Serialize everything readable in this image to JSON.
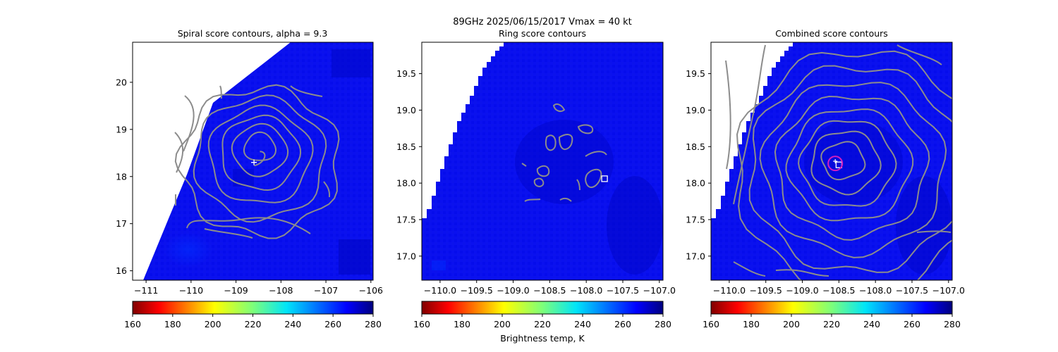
{
  "figure": {
    "suptitle_line1": "89GHz  2025/06/15/2017    Vmax = 40 kt",
    "colorbar_label": "Brightness temp, K"
  },
  "colors": {
    "contour": "#8c8c8c",
    "center_marker": "#ffffff",
    "combined_circle": "#d21fbf",
    "field_base": "#0a10f0"
  },
  "chart_data": [
    {
      "type": "heatmap",
      "title": "Spiral score contours, alpha =  9.3",
      "xlim": [
        -111.3,
        -105.95
      ],
      "ylim": [
        15.8,
        20.85
      ],
      "xticks": [
        -111,
        -110,
        -109,
        -108,
        -107,
        -106
      ],
      "xtick_labels": [
        "−111",
        "−110",
        "−109",
        "−108",
        "−107",
        "−106"
      ],
      "yticks": [
        16,
        17,
        18,
        19,
        20
      ],
      "ytick_labels": [
        "16",
        "17",
        "18",
        "19",
        "20"
      ],
      "center_marker": {
        "type": "plus",
        "x": -108.6,
        "y": 18.3
      },
      "contour_center": {
        "x": -108.5,
        "y": 18.5
      },
      "colorbar": {
        "min": 160,
        "max": 280,
        "ticks": [
          160,
          180,
          200,
          220,
          240,
          260,
          280
        ],
        "colormap": "jet_r"
      }
    },
    {
      "type": "heatmap",
      "title": "Ring score contours",
      "xlim": [
        -110.25,
        -106.95
      ],
      "ylim": [
        16.67,
        19.93
      ],
      "xticks": [
        -110.0,
        -109.5,
        -109.0,
        -108.5,
        -108.0,
        -107.5,
        -107.0
      ],
      "xtick_labels": [
        "−110.0",
        "−109.5",
        "−109.0",
        "−108.5",
        "−108.0",
        "−107.5",
        "−107.0"
      ],
      "yticks": [
        17.0,
        17.5,
        18.0,
        18.5,
        19.0,
        19.5
      ],
      "ytick_labels": [
        "17.0",
        "17.5",
        "18.0",
        "18.5",
        "19.0",
        "19.5"
      ],
      "center_marker": {
        "type": "square",
        "x": -107.75,
        "y": 18.06
      },
      "colorbar": {
        "min": 160,
        "max": 280,
        "ticks": [
          160,
          180,
          200,
          220,
          240,
          260,
          280
        ],
        "colormap": "jet_r"
      }
    },
    {
      "type": "heatmap",
      "title": "Combined score contours",
      "xlim": [
        -110.25,
        -106.95
      ],
      "ylim": [
        16.67,
        19.93
      ],
      "xticks": [
        -110.0,
        -109.5,
        -109.0,
        -108.5,
        -108.0,
        -107.5,
        -107.0
      ],
      "xtick_labels": [
        "−110.0",
        "−109.5",
        "−109.0",
        "−108.5",
        "−108.0",
        "−107.5",
        "−107.0"
      ],
      "yticks": [
        17.0,
        17.5,
        18.0,
        18.5,
        19.0,
        19.5
      ],
      "ytick_labels": [
        "17.0",
        "17.5",
        "18.0",
        "18.5",
        "19.0",
        "19.5"
      ],
      "center_marker": {
        "type": "square",
        "x": -108.5,
        "y": 18.25
      },
      "first_guess": {
        "type": "plus",
        "x": -108.55,
        "y": 18.3
      },
      "circle_marker": {
        "x": -108.55,
        "y": 18.27
      },
      "colorbar": {
        "min": 160,
        "max": 280,
        "ticks": [
          160,
          180,
          200,
          220,
          240,
          260,
          280
        ],
        "colormap": "jet_r"
      }
    }
  ]
}
